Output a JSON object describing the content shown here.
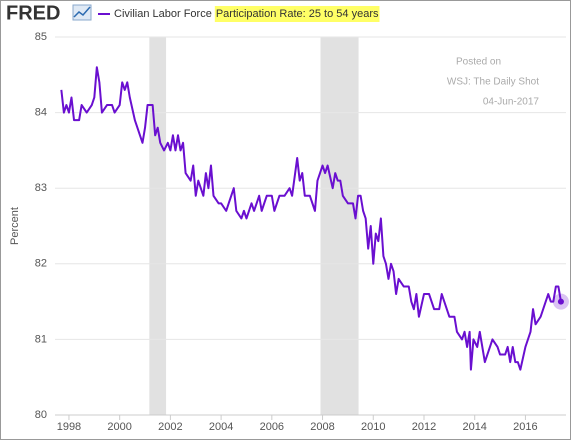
{
  "logo": "FRED",
  "legend": {
    "text": "Civilian Labor Force",
    "highlight": "Participation Rate: 25 to 54 years"
  },
  "annotation": [
    "Posted on",
    "WSJ: The Daily Shot",
    "04-Jun-2017"
  ],
  "chart_data": {
    "type": "line",
    "y_label": "Percent",
    "xlim": [
      1997.45,
      2017.6
    ],
    "xticks": [
      1998,
      2000,
      2002,
      2004,
      2006,
      2008,
      2010,
      2012,
      2014,
      2016
    ],
    "ylim": [
      80,
      85
    ],
    "yticks": [
      80,
      81,
      82,
      83,
      84,
      85
    ],
    "grid": true,
    "recessions": [
      [
        2001.17,
        2001.83
      ],
      [
        2007.92,
        2009.42
      ]
    ],
    "x": [
      1997.7,
      1997.8,
      1997.9,
      1998.0,
      1998.1,
      1998.2,
      1998.4,
      1998.5,
      1998.7,
      1998.9,
      1999.0,
      1999.1,
      1999.2,
      1999.3,
      1999.5,
      1999.7,
      1999.8,
      2000.0,
      2000.1,
      2000.2,
      2000.3,
      2000.4,
      2000.6,
      2000.8,
      2000.9,
      2001.0,
      2001.1,
      2001.3,
      2001.4,
      2001.5,
      2001.6,
      2001.75,
      2001.9,
      2002.0,
      2002.1,
      2002.2,
      2002.3,
      2002.4,
      2002.5,
      2002.6,
      2002.8,
      2002.9,
      2003.0,
      2003.1,
      2003.3,
      2003.4,
      2003.5,
      2003.6,
      2003.7,
      2003.9,
      2004.0,
      2004.2,
      2004.3,
      2004.5,
      2004.6,
      2004.8,
      2004.9,
      2005.0,
      2005.2,
      2005.3,
      2005.5,
      2005.6,
      2005.8,
      2006.0,
      2006.1,
      2006.3,
      2006.5,
      2006.7,
      2006.8,
      2007.0,
      2007.1,
      2007.2,
      2007.3,
      2007.5,
      2007.7,
      2007.8,
      2008.0,
      2008.1,
      2008.2,
      2008.4,
      2008.5,
      2008.6,
      2008.7,
      2008.8,
      2009.0,
      2009.2,
      2009.3,
      2009.4,
      2009.5,
      2009.6,
      2009.7,
      2009.8,
      2009.9,
      2010.0,
      2010.1,
      2010.2,
      2010.3,
      2010.4,
      2010.5,
      2010.6,
      2010.7,
      2010.8,
      2010.9,
      2011.0,
      2011.2,
      2011.4,
      2011.5,
      2011.6,
      2011.7,
      2011.8,
      2012.0,
      2012.2,
      2012.4,
      2012.6,
      2012.7,
      2012.8,
      2013.0,
      2013.2,
      2013.3,
      2013.5,
      2013.6,
      2013.7,
      2013.8,
      2013.85,
      2013.95,
      2014.1,
      2014.2,
      2014.4,
      2014.5,
      2014.7,
      2014.9,
      2015.0,
      2015.2,
      2015.3,
      2015.4,
      2015.5,
      2015.6,
      2015.7,
      2015.8,
      2016.0,
      2016.2,
      2016.3,
      2016.4,
      2016.6,
      2016.8,
      2016.9,
      2017.0,
      2017.1,
      2017.2,
      2017.3,
      2017.4
    ],
    "series": [
      {
        "color": "#6a0fd0",
        "values": [
          84.3,
          84.0,
          84.1,
          84.0,
          84.2,
          83.9,
          83.9,
          84.1,
          84.0,
          84.1,
          84.2,
          84.6,
          84.4,
          84.0,
          84.1,
          84.1,
          84.0,
          84.1,
          84.4,
          84.3,
          84.4,
          84.2,
          83.9,
          83.7,
          83.6,
          83.8,
          84.1,
          84.1,
          83.7,
          83.8,
          83.6,
          83.5,
          83.6,
          83.5,
          83.7,
          83.5,
          83.7,
          83.5,
          83.6,
          83.2,
          83.1,
          83.3,
          82.9,
          83.1,
          82.9,
          83.2,
          83.0,
          83.3,
          82.9,
          82.8,
          82.8,
          82.7,
          82.8,
          83.0,
          82.7,
          82.6,
          82.7,
          82.6,
          82.8,
          82.7,
          82.9,
          82.7,
          82.9,
          82.9,
          82.7,
          82.9,
          82.9,
          83.0,
          82.9,
          83.4,
          83.1,
          83.2,
          82.9,
          82.9,
          82.7,
          83.1,
          83.3,
          83.2,
          83.3,
          83.0,
          83.2,
          83.1,
          83.1,
          82.9,
          82.8,
          82.8,
          82.6,
          82.9,
          82.9,
          82.7,
          82.6,
          82.2,
          82.5,
          82.0,
          82.4,
          82.3,
          82.6,
          82.1,
          82.0,
          81.8,
          82.0,
          81.9,
          81.6,
          81.8,
          81.7,
          81.7,
          81.5,
          81.4,
          81.6,
          81.3,
          81.6,
          81.6,
          81.4,
          81.4,
          81.6,
          81.5,
          81.3,
          81.3,
          81.1,
          81.0,
          81.1,
          80.9,
          81.1,
          80.6,
          81.0,
          80.9,
          81.1,
          80.7,
          80.8,
          81.0,
          80.9,
          80.8,
          80.8,
          80.9,
          80.7,
          80.9,
          80.7,
          80.7,
          80.6,
          80.9,
          81.1,
          81.4,
          81.2,
          81.3,
          81.5,
          81.6,
          81.5,
          81.5,
          81.7,
          81.7,
          81.5
        ]
      }
    ]
  }
}
